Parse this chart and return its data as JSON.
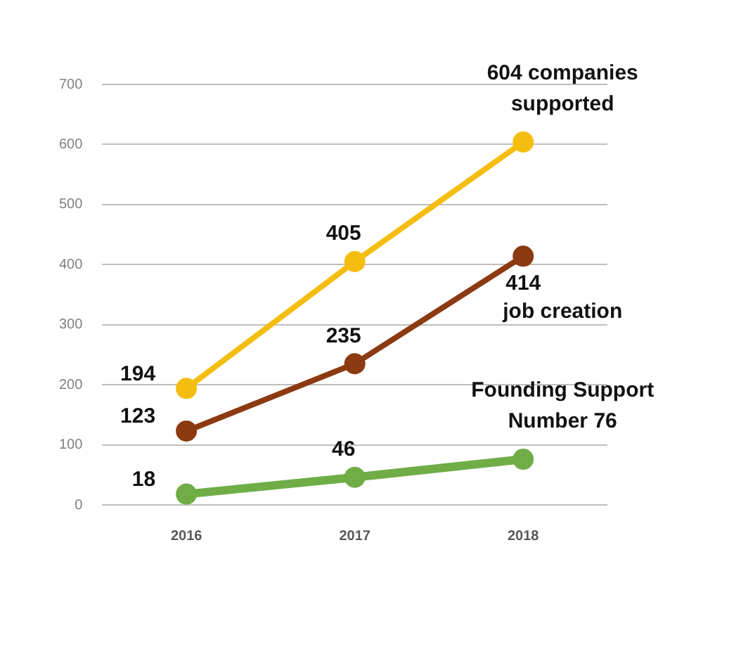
{
  "chart_data": {
    "type": "line",
    "categories": [
      "2016",
      "2017",
      "2018"
    ],
    "series": [
      {
        "color": "#f5bd0f",
        "values": [
          194,
          405,
          604
        ],
        "value_labels": [
          "194",
          "405",
          null
        ]
      },
      {
        "color": "#8b3a12",
        "values": [
          123,
          235,
          414
        ],
        "value_labels": [
          "123",
          "235",
          "414"
        ]
      },
      {
        "color": "#70ad47",
        "values": [
          18,
          46,
          76
        ],
        "value_labels": [
          "18",
          "46",
          null
        ]
      }
    ],
    "ylim": [
      0,
      700
    ],
    "yticks": [
      0,
      100,
      200,
      300,
      400,
      500,
      600,
      700
    ],
    "grid": "y",
    "legend": false,
    "marker": "circle",
    "line_style": "solid",
    "annotations": [
      {
        "text": "604 companies supported",
        "x": "2018",
        "y": 604
      },
      {
        "text": "job creation",
        "x": "2018",
        "y": 414
      },
      {
        "text": "Founding Support Number 76",
        "x": "2018",
        "y": 76
      }
    ]
  }
}
